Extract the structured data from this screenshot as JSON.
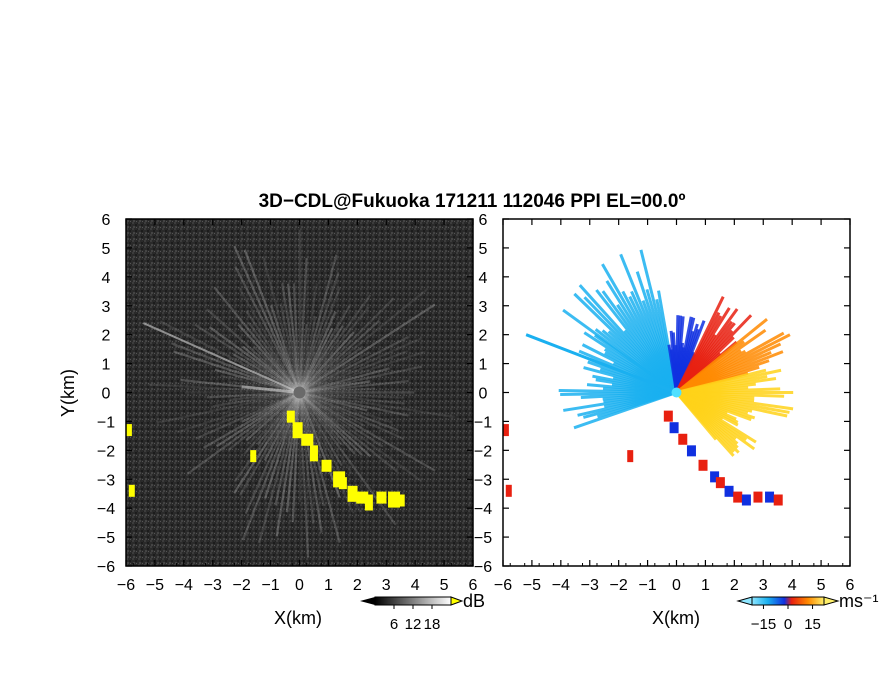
{
  "title": "3D−CDL@Fukuoka 171211 112046 PPI EL=00.0º",
  "panels": [
    {
      "id": "power",
      "xlabel": "X(km)",
      "ylabel": "Y(km)"
    },
    {
      "id": "velocity",
      "xlabel": "X(km)",
      "ylabel": ""
    }
  ],
  "colorbars": [
    {
      "unit": "dB",
      "ticks": [
        "6",
        "12",
        "18"
      ],
      "values": [
        6,
        12,
        18
      ],
      "range": [
        0,
        24
      ],
      "scale": "grayscale"
    },
    {
      "unit": "ms⁻¹",
      "ticks": [
        "−15",
        "0",
        "15"
      ],
      "values": [
        -15,
        0,
        15
      ],
      "range": [
        -22,
        22
      ],
      "scale": "diverging cyan-blue-red-yellow"
    }
  ],
  "colors": {
    "power_background": "#2a2a2a",
    "power_beams": "#c8c8c8",
    "power_highlight": "#ffff00",
    "vel_cyan": "#1ab0f0",
    "vel_blue": "#1030e0",
    "vel_red": "#e82010",
    "vel_orange": "#ff8a00",
    "vel_yellow": "#ffd21a"
  },
  "chart_data": [
    {
      "type": "heatmap",
      "title": "3D−CDL@Fukuoka 171211 112046 PPI EL=00.0º",
      "xlabel": "X(km)",
      "ylabel": "Y(km)",
      "xlim": [
        -6,
        6
      ],
      "ylim": [
        -6,
        6
      ],
      "x_ticks": [
        "−6",
        "−5",
        "−4",
        "−3",
        "−2",
        "−1",
        "0",
        "1",
        "2",
        "3",
        "4",
        "5",
        "6"
      ],
      "y_ticks": [
        "−6",
        "−5",
        "−4",
        "−3",
        "−2",
        "−1",
        "0",
        "1",
        "2",
        "3",
        "4",
        "5",
        "6"
      ],
      "quantity": "backscatter intensity",
      "unit": "dB",
      "color_range": [
        0,
        24
      ],
      "highlight_strip": [
        [
          -0.3,
          -0.8
        ],
        [
          -0.1,
          -1.2
        ],
        [
          0.2,
          -1.6
        ],
        [
          0.5,
          -2.0
        ],
        [
          0.9,
          -2.5
        ],
        [
          1.3,
          -2.9
        ],
        [
          1.5,
          -3.1
        ],
        [
          1.8,
          -3.4
        ],
        [
          2.1,
          -3.6
        ],
        [
          2.4,
          -3.7
        ],
        [
          2.8,
          -3.6
        ],
        [
          3.2,
          -3.6
        ],
        [
          3.5,
          -3.7
        ]
      ]
    },
    {
      "type": "heatmap",
      "xlabel": "X(km)",
      "ylabel": "",
      "xlim": [
        -6,
        6
      ],
      "ylim": [
        -6,
        6
      ],
      "x_ticks": [
        "−6",
        "−5",
        "−4",
        "−3",
        "−2",
        "−1",
        "0",
        "1",
        "2",
        "3",
        "4",
        "5",
        "6"
      ],
      "y_ticks": [
        "−6",
        "−5",
        "−4",
        "−3",
        "−2",
        "−1",
        "0",
        "1",
        "2",
        "3",
        "4",
        "5",
        "6"
      ],
      "quantity": "radial velocity",
      "unit": "ms⁻¹",
      "color_range": [
        -22,
        22
      ],
      "sectors": [
        {
          "from_deg": 100,
          "to_deg": 145,
          "range_km": 5.0,
          "velocity": -18
        },
        {
          "from_deg": 145,
          "to_deg": 200,
          "range_km": 4.0,
          "velocity": -16
        },
        {
          "from_deg": 65,
          "to_deg": 100,
          "range_km": 2.6,
          "velocity": -8
        },
        {
          "from_deg": 40,
          "to_deg": 65,
          "range_km": 3.6,
          "velocity": 8
        },
        {
          "from_deg": 15,
          "to_deg": 40,
          "range_km": 4.4,
          "velocity": 10
        },
        {
          "from_deg": -20,
          "to_deg": 15,
          "range_km": 4.0,
          "velocity": 18
        },
        {
          "from_deg": -50,
          "to_deg": -20,
          "range_km": 3.2,
          "velocity": 15
        }
      ]
    }
  ]
}
